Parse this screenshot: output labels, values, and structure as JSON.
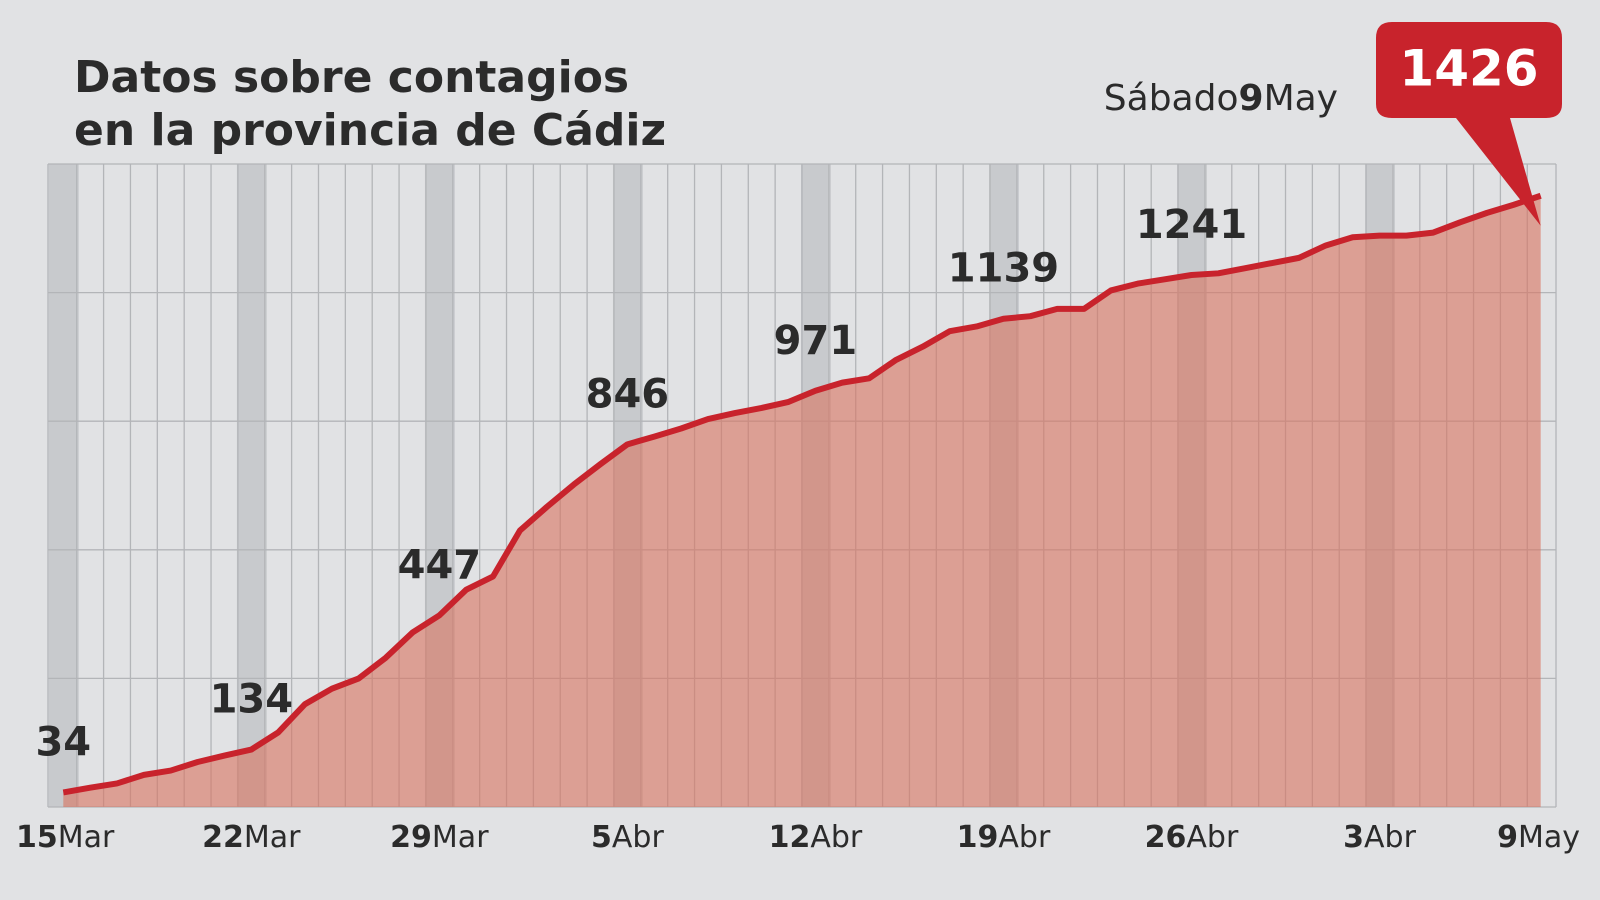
{
  "chart_data": {
    "type": "area",
    "title": [
      "Datos sobre contagios",
      "en la provincia de Cádiz"
    ],
    "subtitle": "Sábado9May",
    "categories": [
      "15Mar",
      null,
      null,
      null,
      null,
      null,
      null,
      "22Mar",
      null,
      null,
      null,
      null,
      null,
      null,
      "29Mar",
      null,
      null,
      null,
      null,
      null,
      null,
      "5Abr",
      null,
      null,
      null,
      null,
      null,
      null,
      "12Abr",
      null,
      null,
      null,
      null,
      null,
      null,
      "19Abr",
      null,
      null,
      null,
      null,
      null,
      null,
      "26Abr",
      null,
      null,
      null,
      null,
      null,
      null,
      "3Abr",
      null,
      null,
      null,
      null,
      null,
      "9May"
    ],
    "values": [
      34,
      45,
      55,
      75,
      85,
      105,
      120,
      134,
      174,
      240,
      276,
      300,
      348,
      407,
      447,
      507,
      538,
      645,
      700,
      752,
      800,
      846,
      864,
      883,
      905,
      919,
      931,
      945,
      971,
      990,
      1000,
      1043,
      1074,
      1110,
      1121,
      1139,
      1145,
      1162,
      1162,
      1205,
      1221,
      1231,
      1241,
      1245,
      1257,
      1269,
      1281,
      1310,
      1329,
      1333,
      1333,
      1340,
      1364,
      1386,
      1405,
      1426
    ],
    "labeled_points": [
      0,
      7,
      14,
      21,
      28,
      35,
      42
    ],
    "callout_point": 55,
    "color": "#c8232c",
    "area_color": "#d9735f",
    "callout_color": "#c8232c",
    "ylim": [
      0,
      1500
    ],
    "yticks": [
      0,
      300,
      600,
      900,
      1200,
      1500
    ],
    "grid": true
  }
}
